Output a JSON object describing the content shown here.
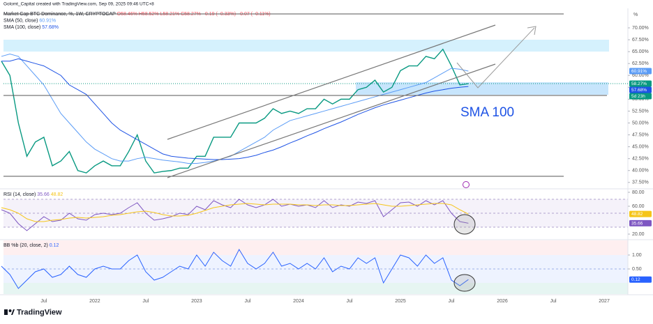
{
  "header": {
    "attribution": "Golomt_Capital created with TradingView.com, Sep 09, 2025 09:46 UTC+8",
    "logo": "TradingView"
  },
  "chart_data": [
    {
      "type": "line",
      "title": "Market Cap BTC Dominance, %, 1W, CRYPTOCAP",
      "subtitle": "O58.46% H58.52% L58.21% C58.27% −0.19 (−0.33%) −0.07 (−0.11%)",
      "y_unit": "%",
      "countdown": "5d 23h",
      "annotations": [
        "SMA 100"
      ],
      "categories": [
        null,
        null,
        null,
        null,
        null,
        "Jul",
        null,
        null,
        null,
        null,
        null,
        "2022",
        null,
        null,
        null,
        null,
        null,
        "Jul",
        null,
        null,
        null,
        null,
        null,
        "2023",
        null,
        null,
        null,
        null,
        null,
        "Jul",
        null,
        null,
        null,
        null,
        null,
        "2024",
        null,
        null,
        null,
        null,
        null,
        "Jul",
        null,
        null,
        null,
        null,
        null,
        "2025",
        null,
        null,
        null,
        null,
        null,
        "Jul",
        null,
        null,
        null,
        null,
        null,
        "2026",
        null,
        null,
        null,
        null,
        null,
        "Jul",
        null,
        null,
        null,
        null,
        null,
        "2027",
        null,
        null,
        null
      ],
      "ylim": [
        36.3,
        74.1
      ],
      "yticks": [
        {
          "value": 37.5,
          "label": "37.50%"
        },
        {
          "value": 40,
          "label": "40.00%"
        },
        {
          "value": 42.5,
          "label": "42.50%"
        },
        {
          "value": 45,
          "label": "45.00%"
        },
        {
          "value": 47.5,
          "label": "47.50%"
        },
        {
          "value": 50,
          "label": "50.00%"
        },
        {
          "value": 52.5,
          "label": "52.50%"
        },
        {
          "value": 55,
          "label": "55.00%"
        },
        {
          "value": 57.5,
          "label": "57.50%"
        },
        {
          "value": 60,
          "label": "60.00%"
        },
        {
          "value": 62.5,
          "label": "62.50%"
        },
        {
          "value": 65,
          "label": "65.00%"
        },
        {
          "value": 67.5,
          "label": "67.50%"
        },
        {
          "value": 70,
          "label": "70.00%"
        }
      ],
      "series": [
        {
          "color": "#089981",
          "values": [
            63,
            60,
            50,
            43,
            46,
            47,
            41,
            42,
            44,
            40,
            39.5,
            41,
            42,
            41,
            41,
            44,
            47.5,
            42,
            39.5,
            39.8,
            40,
            40.5,
            40.5,
            43,
            43,
            47,
            47,
            47,
            50,
            50,
            50,
            51,
            53,
            52,
            52.5,
            52,
            53,
            53,
            55,
            54,
            55,
            55,
            57,
            57.5,
            59,
            56.5,
            57.5,
            61,
            62,
            62,
            64,
            63.5,
            65.5,
            62,
            58,
            58.27,
            null,
            null,
            null,
            null,
            null,
            null,
            null,
            null,
            null,
            null,
            null,
            null,
            null,
            null,
            null,
            null,
            null,
            null,
            null
          ],
          "value_labels": [
            null,
            null,
            null,
            null,
            null,
            null,
            null,
            null,
            null,
            null,
            null,
            null,
            null,
            null,
            null,
            null,
            null,
            null,
            null,
            null,
            null,
            null,
            null,
            null,
            null,
            null,
            null,
            null,
            null,
            null,
            null,
            null,
            null,
            null,
            null,
            null,
            null,
            null,
            null,
            null,
            null,
            null,
            null,
            null,
            null,
            null,
            null,
            null,
            null,
            null,
            null,
            null,
            null,
            null,
            null,
            "58.27%",
            null,
            null,
            null,
            null,
            null,
            null,
            null,
            null,
            null,
            null,
            null,
            null,
            null,
            null,
            null,
            null,
            null,
            null,
            null
          ]
        },
        {
          "name": "SMA (50, close)",
          "color": "#5b9cf6",
          "values": [
            64,
            64.5,
            64,
            62,
            60,
            58,
            55,
            52,
            50,
            48,
            46,
            44.5,
            43.5,
            42.5,
            42,
            42,
            42.5,
            42.8,
            42.5,
            42.2,
            42,
            41.8,
            41.5,
            41.5,
            41.7,
            42,
            42.5,
            43,
            44,
            45,
            46,
            47,
            48.5,
            49.5,
            50.5,
            51,
            51.5,
            52,
            52.5,
            53,
            53.5,
            54,
            54.5,
            55,
            55.5,
            56,
            56.5,
            57,
            57.5,
            58,
            58.5,
            59.5,
            60.5,
            61.5,
            61.3,
            60.91,
            null,
            null,
            null,
            null,
            null,
            null,
            null,
            null,
            null,
            null,
            null,
            null,
            null,
            null,
            null,
            null,
            null,
            null,
            null
          ],
          "value_labels": [
            null,
            null,
            null,
            null,
            null,
            null,
            null,
            null,
            null,
            null,
            null,
            null,
            null,
            null,
            null,
            null,
            null,
            null,
            null,
            null,
            null,
            null,
            null,
            null,
            null,
            null,
            null,
            null,
            null,
            null,
            null,
            null,
            null,
            null,
            null,
            null,
            null,
            null,
            null,
            null,
            null,
            null,
            null,
            null,
            null,
            null,
            null,
            null,
            null,
            null,
            null,
            null,
            null,
            null,
            null,
            "60.91%",
            null,
            null,
            null,
            null,
            null,
            null,
            null,
            null,
            null,
            null,
            null,
            null,
            null,
            null,
            null,
            null,
            null,
            null,
            null
          ]
        },
        {
          "name": "SMA (100, close)",
          "color": "#1e53e5",
          "values": [
            63,
            63,
            63.5,
            63,
            62.5,
            62,
            61,
            60,
            58,
            57,
            56,
            54,
            52,
            50,
            48.5,
            47.5,
            46.5,
            45.5,
            44.5,
            43.5,
            43,
            42.8,
            42.6,
            42.5,
            42.4,
            42.3,
            42.3,
            42.4,
            42.5,
            42.8,
            43.2,
            43.8,
            44.3,
            45,
            45.8,
            46.5,
            47.3,
            48,
            48.8,
            49.5,
            50.2,
            51,
            51.8,
            52.5,
            53.2,
            53.8,
            54.3,
            54.8,
            55.3,
            55.8,
            56.3,
            56.7,
            57,
            57.3,
            57.5,
            57.68,
            null,
            null,
            null,
            null,
            null,
            null,
            null,
            null,
            null,
            null,
            null,
            null,
            null,
            null,
            null,
            null,
            null,
            null,
            null
          ],
          "value_labels": [
            null,
            null,
            null,
            null,
            null,
            null,
            null,
            null,
            null,
            null,
            null,
            null,
            null,
            null,
            null,
            null,
            null,
            null,
            null,
            null,
            null,
            null,
            null,
            null,
            null,
            null,
            null,
            null,
            null,
            null,
            null,
            null,
            null,
            null,
            null,
            null,
            null,
            null,
            null,
            null,
            null,
            null,
            null,
            null,
            null,
            null,
            null,
            null,
            null,
            null,
            null,
            null,
            null,
            null,
            null,
            "57.68%",
            null,
            null,
            null,
            null,
            null,
            null,
            null,
            null,
            null,
            null,
            null,
            null,
            null,
            null,
            null,
            null,
            null,
            null,
            null
          ]
        }
      ]
    },
    {
      "type": "line",
      "title": "RSI (14, close)",
      "ylim": [
        13,
        84
      ],
      "yticks": [
        {
          "value": 20,
          "label": "20.00"
        },
        {
          "value": 60,
          "label": "60.00"
        },
        {
          "value": 80,
          "label": "80.00"
        }
      ],
      "series": [
        {
          "color": "#7e57c2",
          "values": [
            55,
            50,
            35,
            25,
            35,
            45,
            38,
            40,
            50,
            42,
            40,
            48,
            50,
            48,
            50,
            58,
            65,
            50,
            40,
            42,
            45,
            50,
            48,
            60,
            55,
            68,
            62,
            58,
            70,
            62,
            58,
            62,
            70,
            60,
            63,
            60,
            62,
            58,
            68,
            58,
            62,
            60,
            66,
            64,
            68,
            45,
            55,
            65,
            66,
            60,
            68,
            62,
            68,
            50,
            38,
            35.66,
            null,
            null,
            null,
            null,
            null,
            null,
            null,
            null,
            null,
            null,
            null,
            null,
            null,
            null,
            null,
            null,
            null,
            null,
            null
          ]
        },
        {
          "color": "#f5c518",
          "values": [
            58,
            55,
            50,
            42,
            38,
            38,
            40,
            41,
            43,
            44,
            43,
            44,
            45,
            47,
            48,
            50,
            52,
            53,
            51,
            48,
            46,
            46,
            47,
            50,
            54,
            58,
            60,
            62,
            63,
            64,
            63,
            62,
            63,
            63,
            63,
            62,
            62,
            61,
            62,
            62,
            61,
            61,
            62,
            63,
            64,
            62,
            60,
            60,
            61,
            62,
            63,
            64,
            64,
            62,
            55,
            48.82,
            null,
            null,
            null,
            null,
            null,
            null,
            null,
            null,
            null,
            null,
            null,
            null,
            null,
            null,
            null,
            null,
            null,
            null,
            null
          ]
        }
      ]
    },
    {
      "type": "line",
      "title": "BB %b (20, close, 2)",
      "ylim": [
        -0.4,
        1.525
      ],
      "yticks": [
        {
          "value": 0.5,
          "label": "0.50"
        },
        {
          "value": 1,
          "label": "1.00"
        }
      ],
      "series": [
        {
          "color": "#2962ff",
          "values": [
            0.6,
            0.3,
            -0.2,
            0.1,
            0.4,
            0.5,
            0.2,
            0.3,
            0.6,
            0.3,
            0.2,
            0.5,
            0.6,
            0.5,
            0.5,
            0.8,
            1.0,
            0.4,
            0.1,
            0.2,
            0.4,
            0.6,
            0.5,
            1.0,
            0.6,
            1.1,
            0.8,
            0.6,
            1.2,
            0.7,
            0.5,
            0.7,
            1.1,
            0.6,
            0.7,
            0.5,
            0.7,
            0.5,
            0.9,
            0.4,
            0.6,
            0.5,
            0.9,
            0.7,
            0.9,
            0,
            0.5,
            1.0,
            0.9,
            0.6,
            1.0,
            0.7,
            0.9,
            0.1,
            -0.1,
            0.12,
            null,
            null,
            null,
            null,
            null,
            null,
            null,
            null,
            null,
            null,
            null,
            null,
            null,
            null,
            null,
            null,
            null,
            null,
            null
          ]
        }
      ]
    }
  ]
}
